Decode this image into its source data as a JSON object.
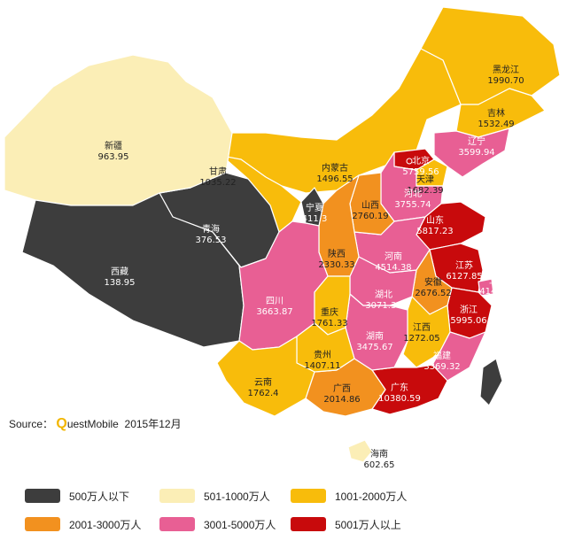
{
  "source": {
    "prefix": "Source：",
    "brand_q": "Q",
    "brand_rest": "uestMobile",
    "date": "2015年12月"
  },
  "legend": [
    {
      "label": "500万人以下",
      "color": "#3d3d3d"
    },
    {
      "label": "501-1000万人",
      "color": "#fbeeb6"
    },
    {
      "label": "1001-2000万人",
      "color": "#f8bc0b"
    },
    {
      "label": "2001-3000万人",
      "color": "#f2911f"
    },
    {
      "label": "3001-5000万人",
      "color": "#e85f94"
    },
    {
      "label": "5001万人以上",
      "color": "#c80a0c"
    }
  ],
  "provinces": [
    {
      "name": "黑龙江",
      "value": "1990.70",
      "cls": 2
    },
    {
      "name": "吉林",
      "value": "1532.49",
      "cls": 2
    },
    {
      "name": "辽宁",
      "value": "3599.94",
      "cls": 4
    },
    {
      "name": "内蒙古",
      "value": "1496.55",
      "cls": 2
    },
    {
      "name": "北京",
      "value": "5759.56",
      "cls": 5
    },
    {
      "name": "天津",
      "value": "1682.39",
      "cls": 2
    },
    {
      "name": "河北",
      "value": "3755.74",
      "cls": 4
    },
    {
      "name": "山东",
      "value": "5817.23",
      "cls": 5
    },
    {
      "name": "江苏",
      "value": "6127.85",
      "cls": 5
    },
    {
      "name": "上海",
      "value": "4140.11",
      "cls": 4
    },
    {
      "name": "浙江",
      "value": "5995.06",
      "cls": 5
    },
    {
      "name": "安徽",
      "value": "2676.52",
      "cls": 3
    },
    {
      "name": "福建",
      "value": "3369.32",
      "cls": 4
    },
    {
      "name": "江西",
      "value": "1272.05",
      "cls": 2
    },
    {
      "name": "广东",
      "value": "10380.59",
      "cls": 5
    },
    {
      "name": "海南",
      "value": "602.65",
      "cls": 1
    },
    {
      "name": "广西",
      "value": "2014.86",
      "cls": 3
    },
    {
      "name": "湖南",
      "value": "3475.67",
      "cls": 4
    },
    {
      "name": "湖北",
      "value": "3071.36",
      "cls": 4
    },
    {
      "name": "河南",
      "value": "4514.38",
      "cls": 4
    },
    {
      "name": "山西",
      "value": "2760.19",
      "cls": 3
    },
    {
      "name": "陕西",
      "value": "2330.33",
      "cls": 3
    },
    {
      "name": "宁夏",
      "value": "411.3",
      "cls": 0
    },
    {
      "name": "甘肃",
      "value": "1035.22",
      "cls": 2
    },
    {
      "name": "青海",
      "value": "376.53",
      "cls": 0
    },
    {
      "name": "新疆",
      "value": "963.95",
      "cls": 1
    },
    {
      "name": "西藏",
      "value": "138.95",
      "cls": 0
    },
    {
      "name": "四川",
      "value": "3663.87",
      "cls": 4
    },
    {
      "name": "重庆",
      "value": "1761.33",
      "cls": 2
    },
    {
      "name": "贵州",
      "value": "1407.11",
      "cls": 2
    },
    {
      "name": "云南",
      "value": "1762.4",
      "cls": 2
    },
    {
      "name": "台湾",
      "value": "",
      "cls": 0
    }
  ]
}
